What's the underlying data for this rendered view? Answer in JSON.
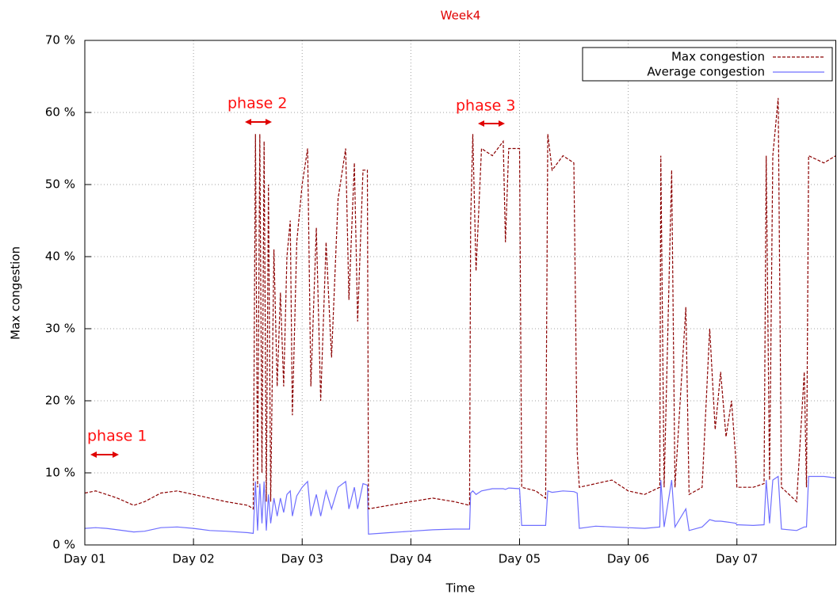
{
  "chart_data": {
    "type": "line",
    "title": "Week4",
    "xlabel": "Time",
    "ylabel": "Max congestion",
    "x": [
      1.0,
      1.1,
      1.2,
      1.3,
      1.45,
      1.55,
      1.7,
      1.85,
      2.0,
      2.15,
      2.3,
      2.5,
      2.55,
      2.57,
      2.59,
      2.61,
      2.63,
      2.65,
      2.67,
      2.69,
      2.71,
      2.74,
      2.77,
      2.8,
      2.83,
      2.86,
      2.89,
      2.91,
      2.95,
      3.0,
      3.05,
      3.08,
      3.13,
      3.17,
      3.22,
      3.27,
      3.33,
      3.4,
      3.43,
      3.48,
      3.51,
      3.56,
      3.6,
      3.61,
      3.8,
      4.0,
      4.2,
      4.4,
      4.54,
      4.55,
      4.57,
      4.6,
      4.65,
      4.75,
      4.85,
      4.87,
      4.9,
      5.0,
      5.02,
      5.15,
      5.24,
      5.26,
      5.3,
      5.4,
      5.5,
      5.53,
      5.55,
      5.7,
      5.85,
      6.0,
      6.15,
      6.29,
      6.3,
      6.33,
      6.4,
      6.43,
      6.53,
      6.56,
      6.68,
      6.75,
      6.8,
      6.85,
      6.9,
      6.95,
      6.99,
      7.0,
      7.15,
      7.25,
      7.27,
      7.3,
      7.33,
      7.38,
      7.41,
      7.55,
      7.62,
      7.64,
      7.66,
      7.8,
      7.91
    ],
    "series": [
      {
        "name": "Max congestion",
        "color": "#8b0000",
        "dashed": true,
        "values": [
          7.2,
          7.5,
          7.0,
          6.5,
          5.5,
          6.0,
          7.2,
          7.5,
          7.0,
          6.5,
          6.0,
          5.5,
          5.0,
          57,
          8,
          57,
          10,
          56,
          6,
          50,
          6,
          41,
          22,
          35,
          22,
          40,
          45,
          18,
          42,
          50,
          55,
          22,
          44,
          20,
          42,
          26,
          48,
          55,
          34,
          53,
          31,
          52,
          52,
          5,
          5.5,
          6.0,
          6.5,
          6.0,
          5.5,
          45,
          57,
          38,
          55,
          54,
          56,
          42,
          55,
          55,
          8,
          7.5,
          6.5,
          57,
          52,
          54,
          53,
          13,
          8,
          8.5,
          9,
          7.5,
          7.0,
          8,
          54,
          8,
          52,
          8,
          33,
          7,
          8,
          30,
          16,
          24,
          15,
          20,
          12,
          8,
          8,
          8.5,
          54,
          9,
          54,
          62,
          8,
          6,
          24,
          8,
          54,
          53,
          54
        ]
      },
      {
        "name": "Average congestion",
        "color": "#6f6fff",
        "dashed": false,
        "values": [
          2.3,
          2.4,
          2.3,
          2.1,
          1.8,
          1.9,
          2.4,
          2.5,
          2.3,
          2.0,
          1.9,
          1.7,
          1.6,
          8.8,
          2,
          8.5,
          3,
          8.8,
          2,
          7,
          3,
          6.5,
          4,
          6.5,
          4.5,
          7,
          7.5,
          4,
          6.8,
          8,
          8.8,
          4,
          7,
          4,
          7.5,
          5,
          8,
          8.8,
          5,
          8,
          5,
          8.5,
          8.3,
          1.5,
          1.7,
          1.9,
          2.1,
          2.2,
          2.2,
          7.2,
          7.5,
          7,
          7.5,
          7.8,
          7.8,
          7.7,
          7.9,
          7.8,
          2.7,
          2.7,
          2.7,
          7.5,
          7.3,
          7.5,
          7.4,
          7.2,
          2.3,
          2.6,
          2.5,
          2.4,
          2.3,
          2.5,
          9,
          2.5,
          9,
          2.5,
          5,
          2,
          2.5,
          3.5,
          3.3,
          3.3,
          3.2,
          3.1,
          3,
          2.8,
          2.7,
          2.8,
          9,
          3,
          9,
          9.5,
          2.2,
          2,
          2.5,
          2.5,
          9.5,
          9.5,
          9.3
        ]
      }
    ],
    "xlim": [
      1,
      7.91
    ],
    "xticks": [
      {
        "value": 1,
        "label": "Day 01"
      },
      {
        "value": 2,
        "label": "Day 02"
      },
      {
        "value": 3,
        "label": "Day 03"
      },
      {
        "value": 4,
        "label": "Day 04"
      },
      {
        "value": 5,
        "label": "Day 05"
      },
      {
        "value": 6,
        "label": "Day 06"
      },
      {
        "value": 7,
        "label": "Day 07"
      }
    ],
    "ylim": [
      0,
      70
    ],
    "yticks": [
      {
        "value": 0,
        "label": "0 %"
      },
      {
        "value": 10,
        "label": "10 %"
      },
      {
        "value": 20,
        "label": "20 %"
      },
      {
        "value": 30,
        "label": "30 %"
      },
      {
        "value": 40,
        "label": "40 %"
      },
      {
        "value": 50,
        "label": "50 %"
      },
      {
        "value": 60,
        "label": "60 %"
      },
      {
        "value": 70,
        "label": "70 %"
      }
    ],
    "grid": true,
    "legend": "top right",
    "annotations": [
      "phase 1",
      "phase 2",
      "phase 3"
    ]
  }
}
